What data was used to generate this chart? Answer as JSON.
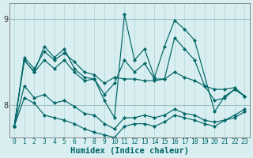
{
  "title": "",
  "xlabel": "Humidex (Indice chaleur)",
  "bg_color": "#d8eef0",
  "grid_color": "#b8d8dc",
  "line_color": "#006666",
  "xlim": [
    -0.5,
    23.5
  ],
  "ylim": [
    7.62,
    9.18
  ],
  "yticks": [
    8,
    9
  ],
  "xticks": [
    0,
    1,
    2,
    3,
    4,
    5,
    6,
    7,
    8,
    9,
    10,
    11,
    12,
    13,
    14,
    15,
    16,
    17,
    18,
    19,
    20,
    21,
    22,
    23
  ],
  "lines": [
    {
      "x": [
        0,
        1,
        2,
        3,
        4,
        5,
        6,
        7,
        8,
        9,
        10,
        11,
        12,
        13,
        14,
        15,
        16,
        17,
        18,
        19,
        20,
        21,
        22,
        23
      ],
      "y": [
        7.75,
        8.55,
        8.42,
        8.62,
        8.52,
        8.6,
        8.5,
        8.38,
        8.35,
        8.25,
        8.32,
        8.3,
        8.3,
        8.28,
        8.28,
        8.3,
        8.38,
        8.32,
        8.28,
        8.22,
        8.18,
        8.18,
        8.2,
        8.1
      ]
    },
    {
      "x": [
        0,
        1,
        2,
        3,
        4,
        5,
        6,
        7,
        8,
        9,
        10,
        11,
        12,
        13,
        14,
        15,
        16,
        17,
        18,
        19,
        20,
        21,
        22,
        23
      ],
      "y": [
        7.75,
        8.52,
        8.38,
        8.52,
        8.42,
        8.52,
        8.38,
        8.28,
        8.3,
        8.12,
        8.25,
        8.52,
        8.38,
        8.48,
        8.3,
        8.3,
        8.78,
        8.65,
        8.52,
        8.22,
        8.05,
        8.08,
        8.18,
        8.1
      ]
    },
    {
      "x": [
        0,
        1,
        2,
        3,
        4,
        5,
        6,
        7,
        8,
        9,
        10,
        11,
        12,
        13,
        14,
        15,
        16,
        17,
        18,
        20,
        21,
        22,
        23
      ],
      "y": [
        7.75,
        8.52,
        8.38,
        8.68,
        8.55,
        8.65,
        8.42,
        8.32,
        8.3,
        8.05,
        7.85,
        9.05,
        8.52,
        8.65,
        8.32,
        8.68,
        8.98,
        8.88,
        8.75,
        7.92,
        8.1,
        8.18,
        8.1
      ]
    },
    {
      "x": [
        0,
        1,
        2,
        3,
        4,
        5,
        6,
        7,
        8,
        9,
        10,
        11,
        12,
        13,
        14,
        15,
        16,
        17,
        18,
        19,
        20,
        21,
        22,
        23
      ],
      "y": [
        7.75,
        8.22,
        8.08,
        8.12,
        8.02,
        8.05,
        7.98,
        7.9,
        7.88,
        7.78,
        7.72,
        7.85,
        7.85,
        7.88,
        7.85,
        7.88,
        7.95,
        7.9,
        7.88,
        7.82,
        7.8,
        7.82,
        7.85,
        7.92
      ]
    },
    {
      "x": [
        0,
        1,
        2,
        3,
        4,
        5,
        6,
        7,
        8,
        9,
        10,
        11,
        12,
        13,
        14,
        15,
        16,
        17,
        18,
        19,
        20,
        21,
        22,
        23
      ],
      "y": [
        7.75,
        8.08,
        8.02,
        7.88,
        7.85,
        7.82,
        7.78,
        7.72,
        7.68,
        7.65,
        7.62,
        7.75,
        7.78,
        7.78,
        7.75,
        7.8,
        7.88,
        7.85,
        7.82,
        7.78,
        7.75,
        7.82,
        7.88,
        7.95
      ]
    }
  ]
}
